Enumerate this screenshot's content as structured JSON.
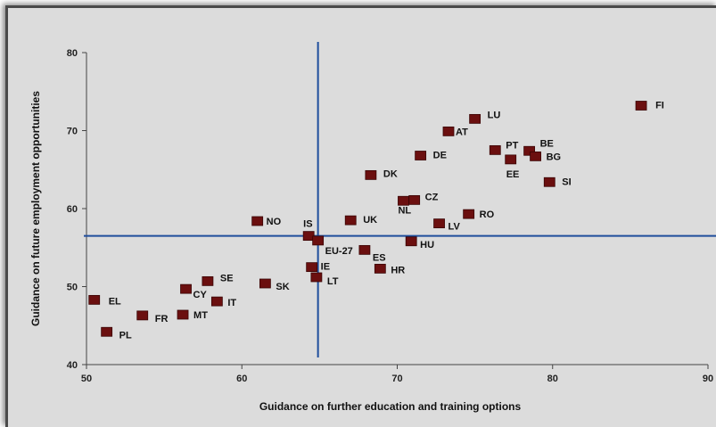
{
  "chart_data": {
    "type": "scatter",
    "xlabel": "Guidance on further education and training options",
    "ylabel": "Guidance on future employment opportunities",
    "xlim": [
      50,
      90
    ],
    "ylim": [
      40,
      80
    ],
    "xticks": [
      "50",
      "60",
      "70",
      "80",
      "90"
    ],
    "yticks": [
      "40",
      "50",
      "60",
      "70",
      "80"
    ],
    "reference_lines": {
      "x": 64.9,
      "y": 56.5
    },
    "colors": {
      "marker": "#6b0f0f",
      "reference_line": "#1f4e9c",
      "axis": "#444444"
    },
    "grid": false,
    "points": [
      {
        "label": "FI",
        "x": 85.7,
        "y": 73.2
      },
      {
        "label": "LU",
        "x": 75.0,
        "y": 71.5
      },
      {
        "label": "AT",
        "x": 73.3,
        "y": 69.9
      },
      {
        "label": "PT",
        "x": 76.3,
        "y": 67.5
      },
      {
        "label": "BE",
        "x": 78.5,
        "y": 67.4
      },
      {
        "label": "BG",
        "x": 78.9,
        "y": 66.7
      },
      {
        "label": "EE",
        "x": 77.3,
        "y": 66.3
      },
      {
        "label": "DE",
        "x": 71.5,
        "y": 66.8
      },
      {
        "label": "DK",
        "x": 68.3,
        "y": 64.3
      },
      {
        "label": "SI",
        "x": 79.8,
        "y": 63.4
      },
      {
        "label": "CZ",
        "x": 71.1,
        "y": 61.1
      },
      {
        "label": "NL",
        "x": 70.4,
        "y": 61.0
      },
      {
        "label": "RO",
        "x": 74.6,
        "y": 59.3
      },
      {
        "label": "UK",
        "x": 67.0,
        "y": 58.5
      },
      {
        "label": "LV",
        "x": 72.7,
        "y": 58.1
      },
      {
        "label": "NO",
        "x": 61.0,
        "y": 58.4
      },
      {
        "label": "IS",
        "x": 64.3,
        "y": 56.5
      },
      {
        "label": "EU-27",
        "x": 64.9,
        "y": 55.9
      },
      {
        "label": "HU",
        "x": 70.9,
        "y": 55.8
      },
      {
        "label": "ES",
        "x": 67.9,
        "y": 54.7
      },
      {
        "label": "IE",
        "x": 64.5,
        "y": 52.5
      },
      {
        "label": "HR",
        "x": 68.9,
        "y": 52.3
      },
      {
        "label": "LT",
        "x": 64.8,
        "y": 51.2
      },
      {
        "label": "SE",
        "x": 57.8,
        "y": 50.7
      },
      {
        "label": "SK",
        "x": 61.5,
        "y": 50.4
      },
      {
        "label": "CY",
        "x": 56.4,
        "y": 49.7
      },
      {
        "label": "EL",
        "x": 50.5,
        "y": 48.3
      },
      {
        "label": "IT",
        "x": 58.4,
        "y": 48.1
      },
      {
        "label": "FR",
        "x": 53.6,
        "y": 46.3
      },
      {
        "label": "MT",
        "x": 56.2,
        "y": 46.4
      },
      {
        "label": "PL",
        "x": 51.3,
        "y": 44.2
      }
    ]
  }
}
